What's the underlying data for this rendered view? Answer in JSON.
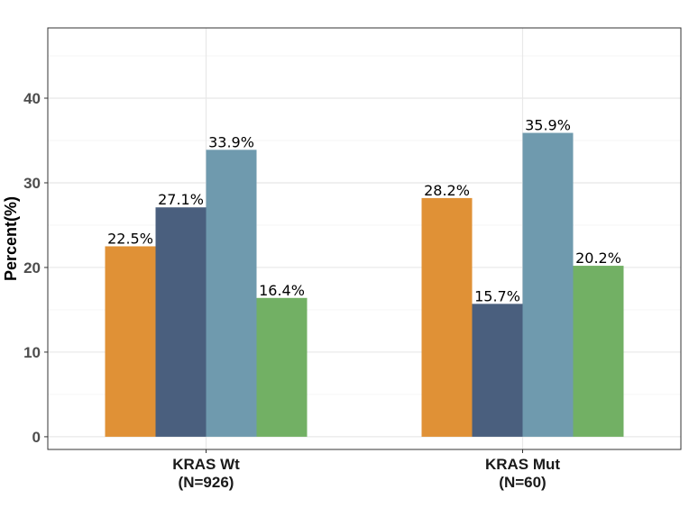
{
  "chart_data": {
    "type": "bar",
    "categories": [
      [
        "KRAS Wt",
        "(N=926)"
      ],
      [
        "KRAS Mut",
        "(N=60)"
      ]
    ],
    "series": [
      {
        "values": [
          22.5,
          28.2
        ],
        "labels": [
          "22.5%",
          "28.2%"
        ],
        "color": "#E09136"
      },
      {
        "values": [
          27.1,
          15.7
        ],
        "labels": [
          "27.1%",
          "15.7%"
        ],
        "color": "#4A5F7E"
      },
      {
        "values": [
          33.9,
          35.9
        ],
        "labels": [
          "33.9%",
          "35.9%"
        ],
        "color": "#6F9AAE"
      },
      {
        "values": [
          16.4,
          20.2
        ],
        "labels": [
          "16.4%",
          "20.2%"
        ],
        "color": "#72B064"
      }
    ],
    "ylabel": "Percent(%)",
    "xlabel": "",
    "yticks": [
      0,
      10,
      20,
      30,
      40
    ],
    "ylim": [
      -1.5,
      48.3
    ],
    "grid": true,
    "legend": "none"
  }
}
